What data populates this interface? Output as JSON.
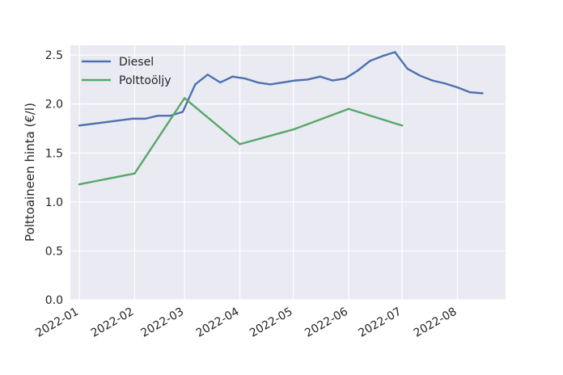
{
  "chart_data": {
    "type": "line",
    "title": "",
    "xlabel": "",
    "ylabel": "Polttoaineen hinta (€/l)",
    "ylim": [
      0,
      2.6
    ],
    "xlim": [
      "2021-12-27",
      "2022-08-28"
    ],
    "grid": true,
    "legend_position": "upper-left",
    "x_ticks": [
      "2022-01-01",
      "2022-02-01",
      "2022-03-01",
      "2022-04-01",
      "2022-05-01",
      "2022-06-01",
      "2022-07-01",
      "2022-08-01"
    ],
    "x_tick_labels": [
      "2022-01",
      "2022-02",
      "2022-03",
      "2022-04",
      "2022-05",
      "2022-06",
      "2022-07",
      "2022-08"
    ],
    "y_ticks": [
      0.0,
      0.5,
      1.0,
      1.5,
      2.0,
      2.5
    ],
    "y_tick_labels": [
      "0.0",
      "0.5",
      "1.0",
      "1.5",
      "2.0",
      "2.5"
    ],
    "series": [
      {
        "name": "Diesel",
        "color": "#4c72b0",
        "points": [
          [
            "2022-01-01",
            1.78
          ],
          [
            "2022-01-31",
            1.85
          ],
          [
            "2022-02-07",
            1.85
          ],
          [
            "2022-02-14",
            1.88
          ],
          [
            "2022-02-21",
            1.88
          ],
          [
            "2022-02-28",
            1.92
          ],
          [
            "2022-03-07",
            2.2
          ],
          [
            "2022-03-14",
            2.3
          ],
          [
            "2022-03-21",
            2.22
          ],
          [
            "2022-03-28",
            2.28
          ],
          [
            "2022-04-04",
            2.26
          ],
          [
            "2022-04-11",
            2.22
          ],
          [
            "2022-04-18",
            2.2
          ],
          [
            "2022-04-25",
            2.22
          ],
          [
            "2022-05-02",
            2.24
          ],
          [
            "2022-05-09",
            2.25
          ],
          [
            "2022-05-16",
            2.28
          ],
          [
            "2022-05-23",
            2.24
          ],
          [
            "2022-05-30",
            2.26
          ],
          [
            "2022-06-06",
            2.34
          ],
          [
            "2022-06-13",
            2.44
          ],
          [
            "2022-06-20",
            2.49
          ],
          [
            "2022-06-27",
            2.53
          ],
          [
            "2022-07-04",
            2.36
          ],
          [
            "2022-07-11",
            2.29
          ],
          [
            "2022-07-18",
            2.24
          ],
          [
            "2022-07-25",
            2.21
          ],
          [
            "2022-08-01",
            2.17
          ],
          [
            "2022-08-08",
            2.12
          ],
          [
            "2022-08-15",
            2.11
          ]
        ]
      },
      {
        "name": "Polttoöljy",
        "color": "#55a868",
        "points": [
          [
            "2022-01-01",
            1.18
          ],
          [
            "2022-02-01",
            1.29
          ],
          [
            "2022-03-01",
            2.06
          ],
          [
            "2022-04-01",
            1.59
          ],
          [
            "2022-05-01",
            1.74
          ],
          [
            "2022-06-01",
            1.95
          ],
          [
            "2022-07-01",
            1.78
          ]
        ]
      }
    ]
  }
}
